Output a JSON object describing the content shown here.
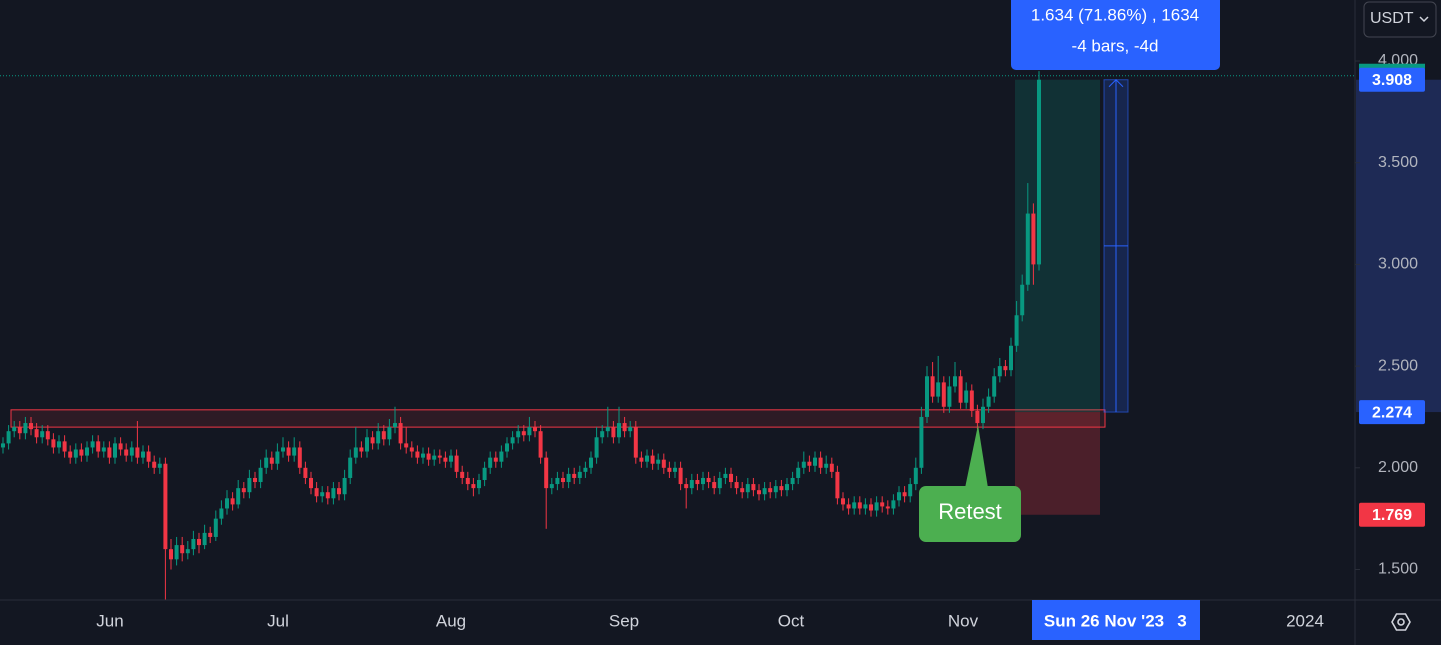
{
  "chart_data": {
    "type": "candlestick",
    "currency": "USDT",
    "ylim": [
      1.35,
      4.3
    ],
    "yticks": [
      {
        "value": 1.5,
        "label": "1.500"
      },
      {
        "value": 2,
        "label": "2.000"
      },
      {
        "value": 2.5,
        "label": "2.500"
      },
      {
        "value": 3,
        "label": "3.000"
      },
      {
        "value": 3.5,
        "label": "3.500"
      },
      {
        "value": 4,
        "label": "4.000"
      }
    ],
    "grid": false,
    "x_labels": [
      "Jun",
      "Jul",
      "Aug",
      "Sep",
      "Oct",
      "Nov",
      "2024"
    ],
    "crosshair_date": "Sun 26 Nov '23",
    "crosshair_extra": "3",
    "up_color": "#089981",
    "down_color": "#f23645",
    "zone": [
      2.2,
      2.285
    ],
    "position": {
      "target": 3.908,
      "entry": 2.274,
      "stop": 1.769
    },
    "measure": {
      "line1": "1.634 (71.86%) , 1634",
      "line2": "-4 bars, -4d"
    },
    "annotation": "Retest",
    "candles": [
      [
        2.1,
        2.15,
        2.07,
        2.12
      ],
      [
        2.12,
        2.21,
        2.09,
        2.18
      ],
      [
        2.18,
        2.23,
        2.15,
        2.2
      ],
      [
        2.2,
        2.23,
        2.14,
        2.17
      ],
      [
        2.17,
        2.25,
        2.14,
        2.22
      ],
      [
        2.22,
        2.25,
        2.16,
        2.19
      ],
      [
        2.19,
        2.22,
        2.12,
        2.15
      ],
      [
        2.15,
        2.21,
        2.12,
        2.18
      ],
      [
        2.18,
        2.21,
        2.11,
        2.14
      ],
      [
        2.14,
        2.17,
        2.07,
        2.1
      ],
      [
        2.1,
        2.16,
        2.07,
        2.13
      ],
      [
        2.13,
        2.16,
        2.05,
        2.08
      ],
      [
        2.08,
        2.11,
        2.02,
        2.05
      ],
      [
        2.05,
        2.12,
        2.02,
        2.09
      ],
      [
        2.09,
        2.12,
        2.03,
        2.06
      ],
      [
        2.06,
        2.13,
        2.03,
        2.1
      ],
      [
        2.1,
        2.16,
        2.07,
        2.13
      ],
      [
        2.13,
        2.16,
        2.05,
        2.08
      ],
      [
        2.08,
        2.13,
        2.05,
        2.1
      ],
      [
        2.1,
        2.13,
        2.02,
        2.05
      ],
      [
        2.05,
        2.15,
        2.02,
        2.12
      ],
      [
        2.12,
        2.15,
        2.06,
        2.09
      ],
      [
        2.09,
        2.12,
        2.03,
        2.06
      ],
      [
        2.06,
        2.13,
        2.03,
        2.1
      ],
      [
        2.1,
        2.23,
        2.02,
        2.05
      ],
      [
        2.05,
        2.11,
        2.02,
        2.08
      ],
      [
        2.08,
        2.11,
        2.0,
        2.03
      ],
      [
        2.03,
        2.06,
        1.97,
        2.0
      ],
      [
        2.0,
        2.05,
        1.97,
        2.02
      ],
      [
        2.02,
        2.05,
        1.35,
        1.6
      ],
      [
        1.6,
        1.65,
        1.5,
        1.55
      ],
      [
        1.55,
        1.66,
        1.52,
        1.62
      ],
      [
        1.62,
        1.66,
        1.54,
        1.58
      ],
      [
        1.58,
        1.64,
        1.55,
        1.6
      ],
      [
        1.6,
        1.69,
        1.57,
        1.65
      ],
      [
        1.65,
        1.68,
        1.58,
        1.62
      ],
      [
        1.62,
        1.72,
        1.6,
        1.68
      ],
      [
        1.68,
        1.71,
        1.63,
        1.66
      ],
      [
        1.66,
        1.79,
        1.64,
        1.75
      ],
      [
        1.75,
        1.84,
        1.72,
        1.8
      ],
      [
        1.8,
        1.89,
        1.77,
        1.85
      ],
      [
        1.85,
        1.88,
        1.79,
        1.82
      ],
      [
        1.82,
        1.94,
        1.8,
        1.9
      ],
      [
        1.9,
        1.93,
        1.85,
        1.88
      ],
      [
        1.88,
        1.99,
        1.85,
        1.95
      ],
      [
        1.95,
        1.98,
        1.9,
        1.93
      ],
      [
        1.93,
        2.04,
        1.9,
        2.0
      ],
      [
        2.0,
        2.09,
        1.97,
        2.05
      ],
      [
        2.05,
        2.08,
        1.99,
        2.02
      ],
      [
        2.02,
        2.12,
        1.99,
        2.08
      ],
      [
        2.08,
        2.15,
        2.05,
        2.1
      ],
      [
        2.1,
        2.13,
        2.03,
        2.06
      ],
      [
        2.06,
        2.15,
        2.03,
        2.1
      ],
      [
        2.1,
        2.13,
        1.97,
        2.0
      ],
      [
        2.0,
        2.03,
        1.92,
        1.95
      ],
      [
        1.95,
        1.98,
        1.87,
        1.9
      ],
      [
        1.9,
        1.93,
        1.83,
        1.86
      ],
      [
        1.86,
        1.91,
        1.83,
        1.88
      ],
      [
        1.88,
        1.91,
        1.82,
        1.85
      ],
      [
        1.85,
        1.93,
        1.82,
        1.9
      ],
      [
        1.9,
        1.93,
        1.84,
        1.87
      ],
      [
        1.87,
        1.99,
        1.84,
        1.95
      ],
      [
        1.95,
        2.09,
        1.92,
        2.05
      ],
      [
        2.05,
        2.2,
        2.02,
        2.1
      ],
      [
        2.1,
        2.13,
        2.05,
        2.08
      ],
      [
        2.08,
        2.19,
        2.05,
        2.15
      ],
      [
        2.15,
        2.18,
        2.09,
        2.12
      ],
      [
        2.12,
        2.22,
        2.09,
        2.18
      ],
      [
        2.18,
        2.21,
        2.11,
        2.14
      ],
      [
        2.14,
        2.24,
        2.11,
        2.2
      ],
      [
        2.2,
        2.3,
        2.17,
        2.22
      ],
      [
        2.22,
        2.25,
        2.09,
        2.12
      ],
      [
        2.12,
        2.2,
        2.07,
        2.1
      ],
      [
        2.1,
        2.13,
        2.05,
        2.08
      ],
      [
        2.08,
        2.11,
        2.02,
        2.05
      ],
      [
        2.05,
        2.1,
        2.02,
        2.07
      ],
      [
        2.07,
        2.1,
        2.01,
        2.04
      ],
      [
        2.04,
        2.09,
        2.01,
        2.06
      ],
      [
        2.06,
        2.09,
        2.02,
        2.05
      ],
      [
        2.05,
        2.08,
        2.0,
        2.03
      ],
      [
        2.03,
        2.09,
        2.0,
        2.06
      ],
      [
        2.06,
        2.09,
        1.95,
        1.98
      ],
      [
        1.98,
        2.01,
        1.92,
        1.95
      ],
      [
        1.95,
        1.98,
        1.89,
        1.92
      ],
      [
        1.92,
        1.95,
        1.86,
        1.9
      ],
      [
        1.9,
        1.97,
        1.87,
        1.94
      ],
      [
        1.94,
        2.03,
        1.91,
        2.0
      ],
      [
        2.0,
        2.08,
        1.97,
        2.05
      ],
      [
        2.05,
        2.08,
        2.0,
        2.03
      ],
      [
        2.03,
        2.11,
        2.0,
        2.08
      ],
      [
        2.08,
        2.15,
        2.05,
        2.12
      ],
      [
        2.12,
        2.18,
        2.09,
        2.15
      ],
      [
        2.15,
        2.21,
        2.12,
        2.18
      ],
      [
        2.18,
        2.21,
        2.13,
        2.16
      ],
      [
        2.16,
        2.25,
        2.13,
        2.2
      ],
      [
        2.2,
        2.23,
        2.15,
        2.18
      ],
      [
        2.18,
        2.21,
        2.02,
        2.05
      ],
      [
        2.05,
        2.08,
        1.7,
        1.9
      ],
      [
        1.9,
        1.95,
        1.87,
        1.92
      ],
      [
        1.92,
        1.98,
        1.89,
        1.95
      ],
      [
        1.95,
        1.98,
        1.9,
        1.93
      ],
      [
        1.93,
        2.0,
        1.9,
        1.97
      ],
      [
        1.97,
        2.0,
        1.92,
        1.95
      ],
      [
        1.95,
        2.01,
        1.92,
        1.98
      ],
      [
        1.98,
        2.03,
        1.95,
        2.0
      ],
      [
        2.0,
        2.08,
        1.97,
        2.05
      ],
      [
        2.05,
        2.2,
        2.02,
        2.15
      ],
      [
        2.15,
        2.21,
        2.12,
        2.18
      ],
      [
        2.18,
        2.3,
        2.15,
        2.2
      ],
      [
        2.2,
        2.23,
        2.12,
        2.15
      ],
      [
        2.15,
        2.3,
        2.12,
        2.22
      ],
      [
        2.22,
        2.25,
        2.15,
        2.18
      ],
      [
        2.18,
        2.23,
        2.15,
        2.2
      ],
      [
        2.2,
        2.23,
        2.02,
        2.05
      ],
      [
        2.05,
        2.08,
        2.0,
        2.03
      ],
      [
        2.03,
        2.09,
        2.0,
        2.06
      ],
      [
        2.06,
        2.09,
        1.99,
        2.02
      ],
      [
        2.02,
        2.07,
        1.99,
        2.04
      ],
      [
        2.04,
        2.07,
        1.97,
        2.0
      ],
      [
        2.0,
        2.03,
        1.95,
        1.98
      ],
      [
        1.98,
        2.03,
        1.95,
        2.0
      ],
      [
        2.0,
        2.03,
        1.89,
        1.92
      ],
      [
        1.92,
        1.95,
        1.8,
        1.9
      ],
      [
        1.9,
        1.97,
        1.87,
        1.94
      ],
      [
        1.94,
        1.97,
        1.89,
        1.92
      ],
      [
        1.92,
        1.98,
        1.89,
        1.95
      ],
      [
        1.95,
        1.98,
        1.9,
        1.93
      ],
      [
        1.93,
        1.96,
        1.87,
        1.9
      ],
      [
        1.9,
        1.98,
        1.87,
        1.95
      ],
      [
        1.95,
        2.0,
        1.92,
        1.97
      ],
      [
        1.97,
        2.0,
        1.9,
        1.93
      ],
      [
        1.93,
        1.96,
        1.87,
        1.9
      ],
      [
        1.9,
        1.93,
        1.85,
        1.88
      ],
      [
        1.88,
        1.95,
        1.85,
        1.92
      ],
      [
        1.92,
        1.95,
        1.86,
        1.89
      ],
      [
        1.89,
        1.92,
        1.84,
        1.87
      ],
      [
        1.87,
        1.93,
        1.84,
        1.9
      ],
      [
        1.9,
        1.93,
        1.85,
        1.88
      ],
      [
        1.88,
        1.94,
        1.85,
        1.91
      ],
      [
        1.91,
        1.94,
        1.86,
        1.89
      ],
      [
        1.89,
        1.95,
        1.86,
        1.92
      ],
      [
        1.92,
        1.98,
        1.89,
        1.95
      ],
      [
        1.95,
        2.03,
        1.92,
        2.0
      ],
      [
        2.0,
        2.08,
        1.97,
        2.03
      ],
      [
        2.03,
        2.06,
        1.98,
        2.01
      ],
      [
        2.01,
        2.08,
        1.98,
        2.05
      ],
      [
        2.05,
        2.08,
        1.97,
        2.0
      ],
      [
        2.0,
        2.06,
        1.97,
        2.02
      ],
      [
        2.02,
        2.05,
        1.95,
        1.98
      ],
      [
        1.98,
        2.01,
        1.82,
        1.85
      ],
      [
        1.85,
        1.88,
        1.79,
        1.82
      ],
      [
        1.82,
        1.85,
        1.77,
        1.8
      ],
      [
        1.8,
        1.86,
        1.77,
        1.83
      ],
      [
        1.83,
        1.86,
        1.77,
        1.8
      ],
      [
        1.8,
        1.85,
        1.77,
        1.82
      ],
      [
        1.82,
        1.85,
        1.76,
        1.79
      ],
      [
        1.79,
        1.86,
        1.76,
        1.83
      ],
      [
        1.83,
        1.86,
        1.78,
        1.81
      ],
      [
        1.81,
        1.84,
        1.77,
        1.8
      ],
      [
        1.8,
        1.87,
        1.77,
        1.84
      ],
      [
        1.84,
        1.91,
        1.81,
        1.88
      ],
      [
        1.88,
        1.91,
        1.83,
        1.86
      ],
      [
        1.86,
        1.95,
        1.83,
        1.92
      ],
      [
        1.92,
        2.05,
        1.89,
        2.0
      ],
      [
        2.0,
        2.3,
        1.97,
        2.25
      ],
      [
        2.25,
        2.5,
        2.22,
        2.45
      ],
      [
        2.45,
        2.52,
        2.32,
        2.35
      ],
      [
        2.35,
        2.55,
        2.32,
        2.42
      ],
      [
        2.42,
        2.45,
        2.27,
        2.3
      ],
      [
        2.3,
        2.45,
        2.27,
        2.4
      ],
      [
        2.4,
        2.52,
        2.37,
        2.45
      ],
      [
        2.45,
        2.48,
        2.29,
        2.32
      ],
      [
        2.32,
        2.42,
        2.29,
        2.38
      ],
      [
        2.38,
        2.41,
        2.25,
        2.28
      ],
      [
        2.28,
        2.31,
        2.19,
        2.22
      ],
      [
        2.22,
        2.34,
        2.19,
        2.3
      ],
      [
        2.3,
        2.39,
        2.27,
        2.35
      ],
      [
        2.35,
        2.49,
        2.32,
        2.45
      ],
      [
        2.45,
        2.54,
        2.42,
        2.5
      ],
      [
        2.5,
        2.53,
        2.45,
        2.48
      ],
      [
        2.48,
        2.64,
        2.45,
        2.6
      ],
      [
        2.6,
        2.82,
        2.57,
        2.75
      ],
      [
        2.75,
        2.95,
        2.72,
        2.9
      ],
      [
        2.9,
        3.4,
        2.87,
        3.25
      ],
      [
        3.25,
        3.3,
        2.9,
        3.0
      ],
      [
        3.0,
        3.95,
        2.97,
        3.908
      ]
    ]
  }
}
